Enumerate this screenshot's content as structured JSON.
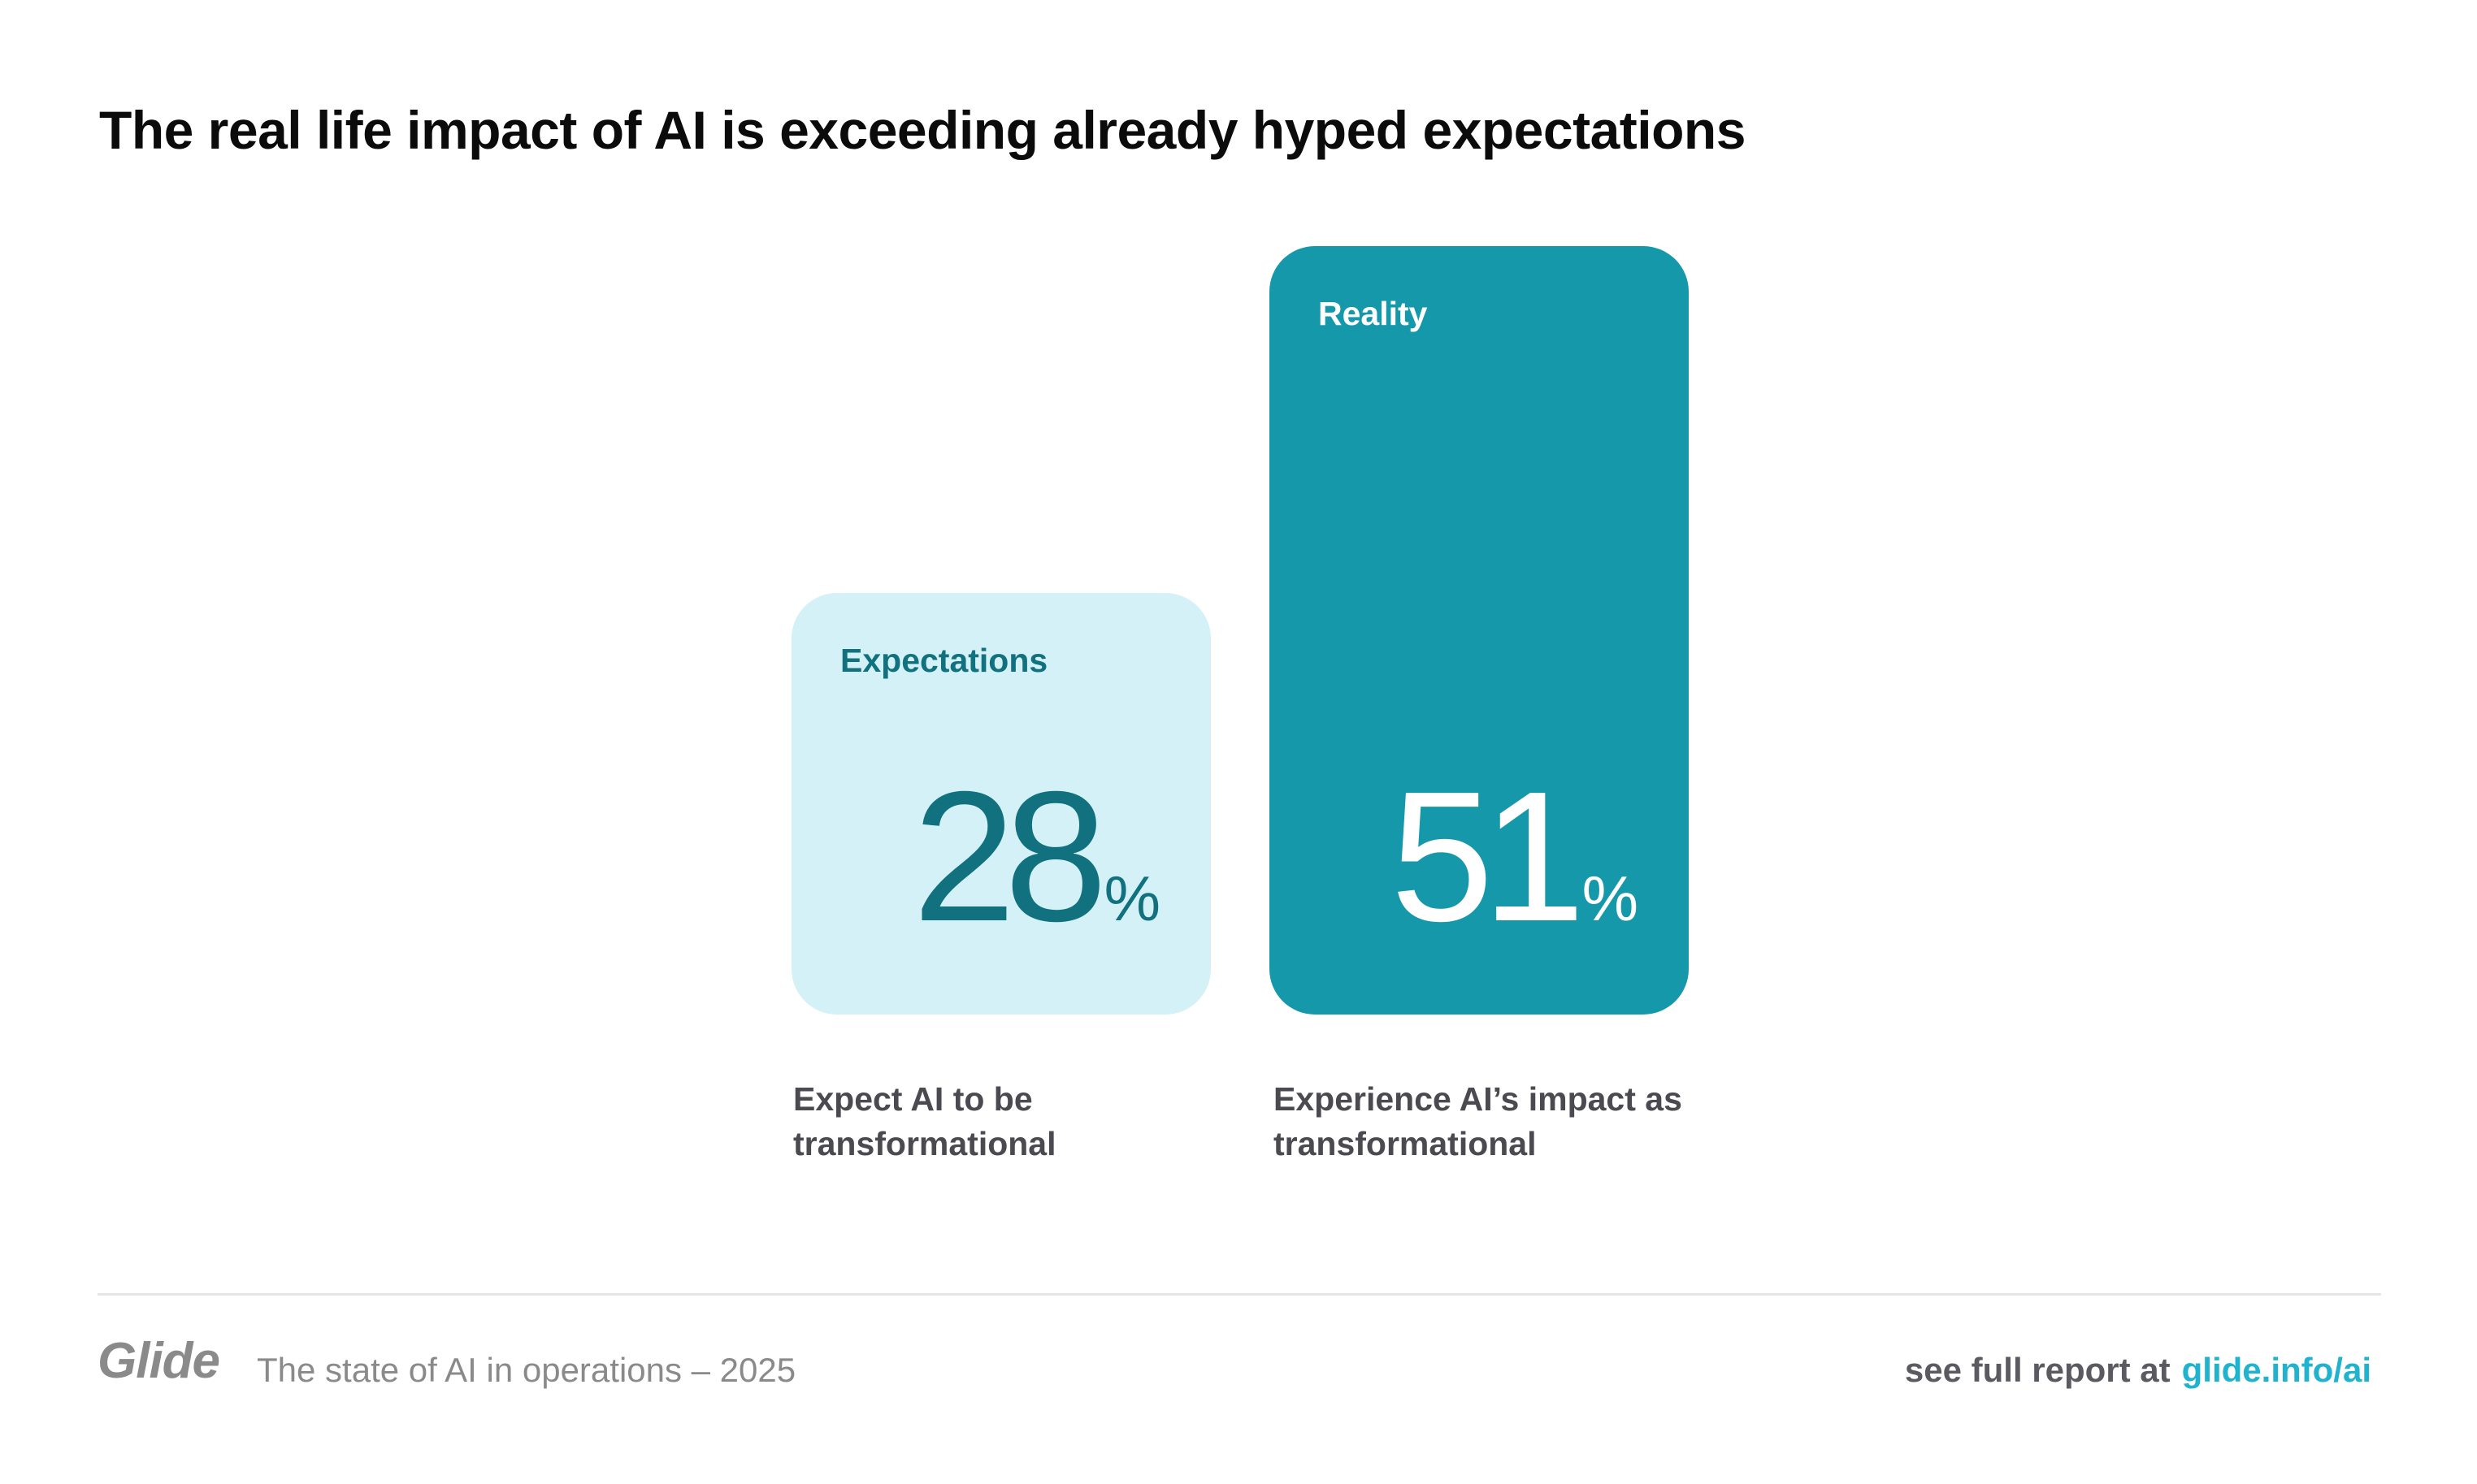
{
  "title": "The real life impact of AI is exceeding already hyped expectations",
  "chart_data": {
    "type": "bar",
    "title": "The real life impact of AI is exceeding already hyped expectations",
    "categories": [
      "Expectations",
      "Reality"
    ],
    "values": [
      28,
      51
    ],
    "unit": "%",
    "value_labels": [
      "28",
      "51"
    ],
    "captions": [
      "Expect AI to be transformational",
      "Experience AI’s impact as transformational"
    ],
    "xlabel": "",
    "ylabel": "",
    "ylim": [
      0,
      51
    ],
    "grid": false,
    "legend": "none",
    "colors": [
      "#d3f1f6",
      "#1698ab"
    ],
    "text_colors": [
      "#11717e",
      "#ffffff"
    ]
  },
  "bars": [
    {
      "label": "Expectations",
      "value": "28",
      "unit": "%",
      "caption_line1": "Expect AI to be",
      "caption_line2": "transformational"
    },
    {
      "label": "Reality",
      "value": "51",
      "unit": "%",
      "caption_line1": "Experience AI’s impact as",
      "caption_line2": "transformational"
    }
  ],
  "footer": {
    "logo": "Glide",
    "report_name": "The state of AI in operations – 2025",
    "cta_text": "see full report at",
    "cta_link": "glide.info/ai",
    "link_color": "#1fb3cf"
  }
}
